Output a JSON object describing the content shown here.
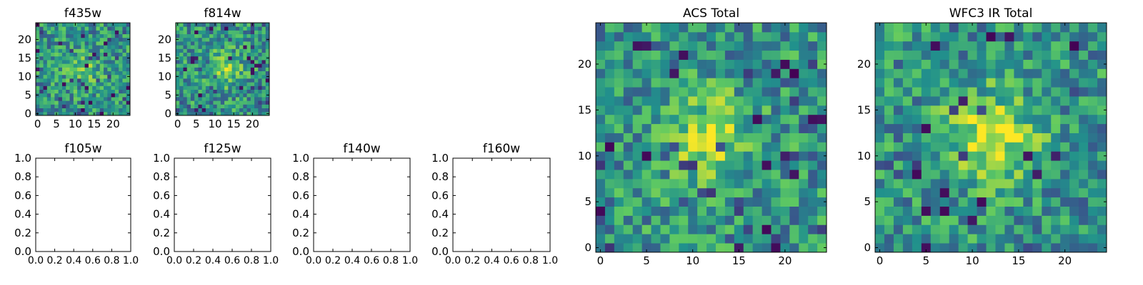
{
  "colormap": [
    "#440154",
    "#3b528b",
    "#21918c",
    "#5ec962",
    "#fde725"
  ],
  "panels": [
    {
      "title": "f435w",
      "kind": "image",
      "xticks": [
        "0",
        "5",
        "10",
        "15",
        "20"
      ],
      "yticks": [
        "0",
        "5",
        "10",
        "15",
        "20"
      ],
      "seed": 11,
      "blob": 0.35
    },
    {
      "title": "f814w",
      "kind": "image",
      "xticks": [
        "0",
        "5",
        "10",
        "15",
        "20"
      ],
      "yticks": [
        "0",
        "5",
        "10",
        "15",
        "20"
      ],
      "seed": 23,
      "blob": 0.55
    },
    {
      "title": "f105w",
      "kind": "empty",
      "xticks": [
        "0.0",
        "0.2",
        "0.4",
        "0.6",
        "0.8",
        "1.0"
      ],
      "yticks": [
        "0.0",
        "0.2",
        "0.4",
        "0.6",
        "0.8",
        "1.0"
      ]
    },
    {
      "title": "f125w",
      "kind": "empty",
      "xticks": [
        "0.0",
        "0.2",
        "0.4",
        "0.6",
        "0.8",
        "1.0"
      ],
      "yticks": [
        "0.0",
        "0.2",
        "0.4",
        "0.6",
        "0.8",
        "1.0"
      ]
    },
    {
      "title": "f140w",
      "kind": "empty",
      "xticks": [
        "0.0",
        "0.2",
        "0.4",
        "0.6",
        "0.8",
        "1.0"
      ],
      "yticks": [
        "0.0",
        "0.2",
        "0.4",
        "0.6",
        "0.8",
        "1.0"
      ]
    },
    {
      "title": "f160w",
      "kind": "empty",
      "xticks": [
        "0.0",
        "0.2",
        "0.4",
        "0.6",
        "0.8",
        "1.0"
      ],
      "yticks": [
        "0.0",
        "0.2",
        "0.4",
        "0.6",
        "0.8",
        "1.0"
      ]
    },
    {
      "title": "ACS Total",
      "kind": "image",
      "xticks": [
        "0",
        "5",
        "10",
        "15",
        "20"
      ],
      "yticks": [
        "0",
        "5",
        "10",
        "15",
        "20"
      ],
      "seed": 37,
      "blob": 0.6
    },
    {
      "title": "WFC3 IR Total",
      "kind": "image",
      "xticks": [
        "0",
        "5",
        "10",
        "15",
        "20"
      ],
      "yticks": [
        "0",
        "5",
        "10",
        "15",
        "20"
      ],
      "seed": 53,
      "blob": 0.8
    }
  ],
  "chart_data": [
    {
      "type": "heatmap",
      "title": "f435w",
      "grid": [
        25,
        25
      ],
      "xlim": [
        0,
        25
      ],
      "ylim": [
        0,
        25
      ]
    },
    {
      "type": "heatmap",
      "title": "f814w",
      "grid": [
        25,
        25
      ],
      "xlim": [
        0,
        25
      ],
      "ylim": [
        0,
        25
      ]
    },
    {
      "type": "scatter",
      "title": "f105w",
      "xlim": [
        0.0,
        1.0
      ],
      "ylim": [
        0.0,
        1.0
      ],
      "series": []
    },
    {
      "type": "scatter",
      "title": "f125w",
      "xlim": [
        0.0,
        1.0
      ],
      "ylim": [
        0.0,
        1.0
      ],
      "series": []
    },
    {
      "type": "scatter",
      "title": "f140w",
      "xlim": [
        0.0,
        1.0
      ],
      "ylim": [
        0.0,
        1.0
      ],
      "series": []
    },
    {
      "type": "scatter",
      "title": "f160w",
      "xlim": [
        0.0,
        1.0
      ],
      "ylim": [
        0.0,
        1.0
      ],
      "series": []
    },
    {
      "type": "heatmap",
      "title": "ACS Total",
      "grid": [
        25,
        25
      ],
      "xlim": [
        0,
        25
      ],
      "ylim": [
        0,
        25
      ]
    },
    {
      "type": "heatmap",
      "title": "WFC3 IR Total",
      "grid": [
        25,
        25
      ],
      "xlim": [
        0,
        25
      ],
      "ylim": [
        0,
        25
      ]
    }
  ]
}
